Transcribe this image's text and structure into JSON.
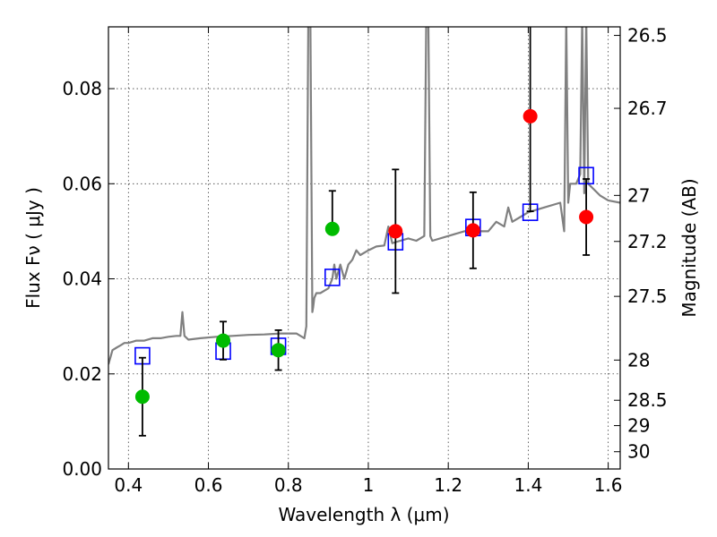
{
  "chart_data": {
    "type": "scatter",
    "xlabel": "Wavelength  λ (μm)",
    "ylabel": "Flux  Fν  ( μJy )",
    "y2label": "Magnitude (AB)",
    "xlim": [
      0.35,
      1.63
    ],
    "ylim": [
      0.0,
      0.093
    ],
    "grid": true,
    "x_ticks": [
      0.4,
      0.6,
      0.8,
      1.0,
      1.2,
      1.4,
      1.6
    ],
    "x_tick_labels": [
      "0.4",
      "0.6",
      "0.8",
      "1",
      "1.2",
      "1.4",
      "1.6"
    ],
    "y_ticks": [
      0.0,
      0.02,
      0.04,
      0.06,
      0.08
    ],
    "y_tick_labels": [
      "0.00",
      "0.02",
      "0.04",
      "0.06",
      "0.08"
    ],
    "y2_tick_labels": [
      "26.5",
      "26.7",
      "27",
      "27.2",
      "27.5",
      "28",
      "28.5",
      "29",
      "30"
    ],
    "colors": {
      "sed": "#808080",
      "model_points": "#0000ff",
      "green_points": "#00bb00",
      "red_points": "#ff0000",
      "errorbar": "#000000"
    },
    "series": [
      {
        "type": "line",
        "color": "#808080",
        "x": [
          0.35,
          0.36,
          0.37,
          0.38,
          0.39,
          0.4,
          0.42,
          0.44,
          0.46,
          0.48,
          0.5,
          0.52,
          0.53,
          0.535,
          0.54,
          0.55,
          0.58,
          0.62,
          0.66,
          0.7,
          0.74,
          0.78,
          0.82,
          0.84,
          0.845,
          0.85,
          0.855,
          0.86,
          0.862,
          0.865,
          0.87,
          0.88,
          0.89,
          0.9,
          0.91,
          0.915,
          0.92,
          0.93,
          0.94,
          0.95,
          0.96,
          0.97,
          0.98,
          1.0,
          1.02,
          1.04,
          1.05,
          1.06,
          1.08,
          1.1,
          1.12,
          1.14,
          1.145,
          1.15,
          1.155,
          1.16,
          1.2,
          1.24,
          1.28,
          1.3,
          1.32,
          1.34,
          1.35,
          1.36,
          1.38,
          1.4,
          1.44,
          1.48,
          1.49,
          1.495,
          1.5,
          1.505,
          1.52,
          1.53,
          1.535,
          1.54,
          1.545,
          1.55,
          1.58,
          1.6,
          1.63
        ],
        "y": [
          0.022,
          0.025,
          0.0255,
          0.026,
          0.0265,
          0.0265,
          0.027,
          0.027,
          0.0275,
          0.0275,
          0.0278,
          0.028,
          0.028,
          0.033,
          0.028,
          0.0272,
          0.0275,
          0.0278,
          0.028,
          0.0282,
          0.0283,
          0.0285,
          0.0285,
          0.0275,
          0.03,
          0.095,
          0.095,
          0.033,
          0.034,
          0.036,
          0.037,
          0.037,
          0.0375,
          0.038,
          0.04,
          0.043,
          0.04,
          0.043,
          0.04,
          0.043,
          0.044,
          0.046,
          0.045,
          0.046,
          0.0468,
          0.047,
          0.051,
          0.0475,
          0.048,
          0.0485,
          0.048,
          0.049,
          0.095,
          0.095,
          0.049,
          0.048,
          0.049,
          0.05,
          0.05,
          0.05,
          0.052,
          0.051,
          0.055,
          0.052,
          0.053,
          0.054,
          0.055,
          0.056,
          0.05,
          0.095,
          0.056,
          0.06,
          0.06,
          0.062,
          0.095,
          0.058,
          0.095,
          0.06,
          0.0575,
          0.0565,
          0.056
        ]
      },
      {
        "type": "scatter",
        "marker": "square",
        "color": "#0000ff",
        "x": [
          0.435,
          0.637,
          0.775,
          0.91,
          1.068,
          1.262,
          1.405,
          1.545
        ],
        "y": [
          0.0238,
          0.0248,
          0.0258,
          0.0403,
          0.0478,
          0.0508,
          0.054,
          0.0617
        ]
      },
      {
        "type": "scatter",
        "marker": "circle",
        "color": "#00bb00",
        "x": [
          0.435,
          0.637,
          0.775,
          0.91
        ],
        "y": [
          0.0152,
          0.027,
          0.025,
          0.0505
        ],
        "yerr_low": [
          0.0082,
          0.004,
          0.0042,
          0.0
        ],
        "yerr_high": [
          0.0082,
          0.004,
          0.0042,
          0.008
        ]
      },
      {
        "type": "scatter",
        "marker": "circle",
        "color": "#ff0000",
        "x": [
          1.068,
          1.262,
          1.405,
          1.545
        ],
        "y": [
          0.05,
          0.0502,
          0.0742,
          0.053
        ],
        "yerr_low": [
          0.013,
          0.008,
          0.02,
          0.008
        ],
        "yerr_high": [
          0.013,
          0.008,
          0.02,
          0.008
        ]
      }
    ]
  }
}
